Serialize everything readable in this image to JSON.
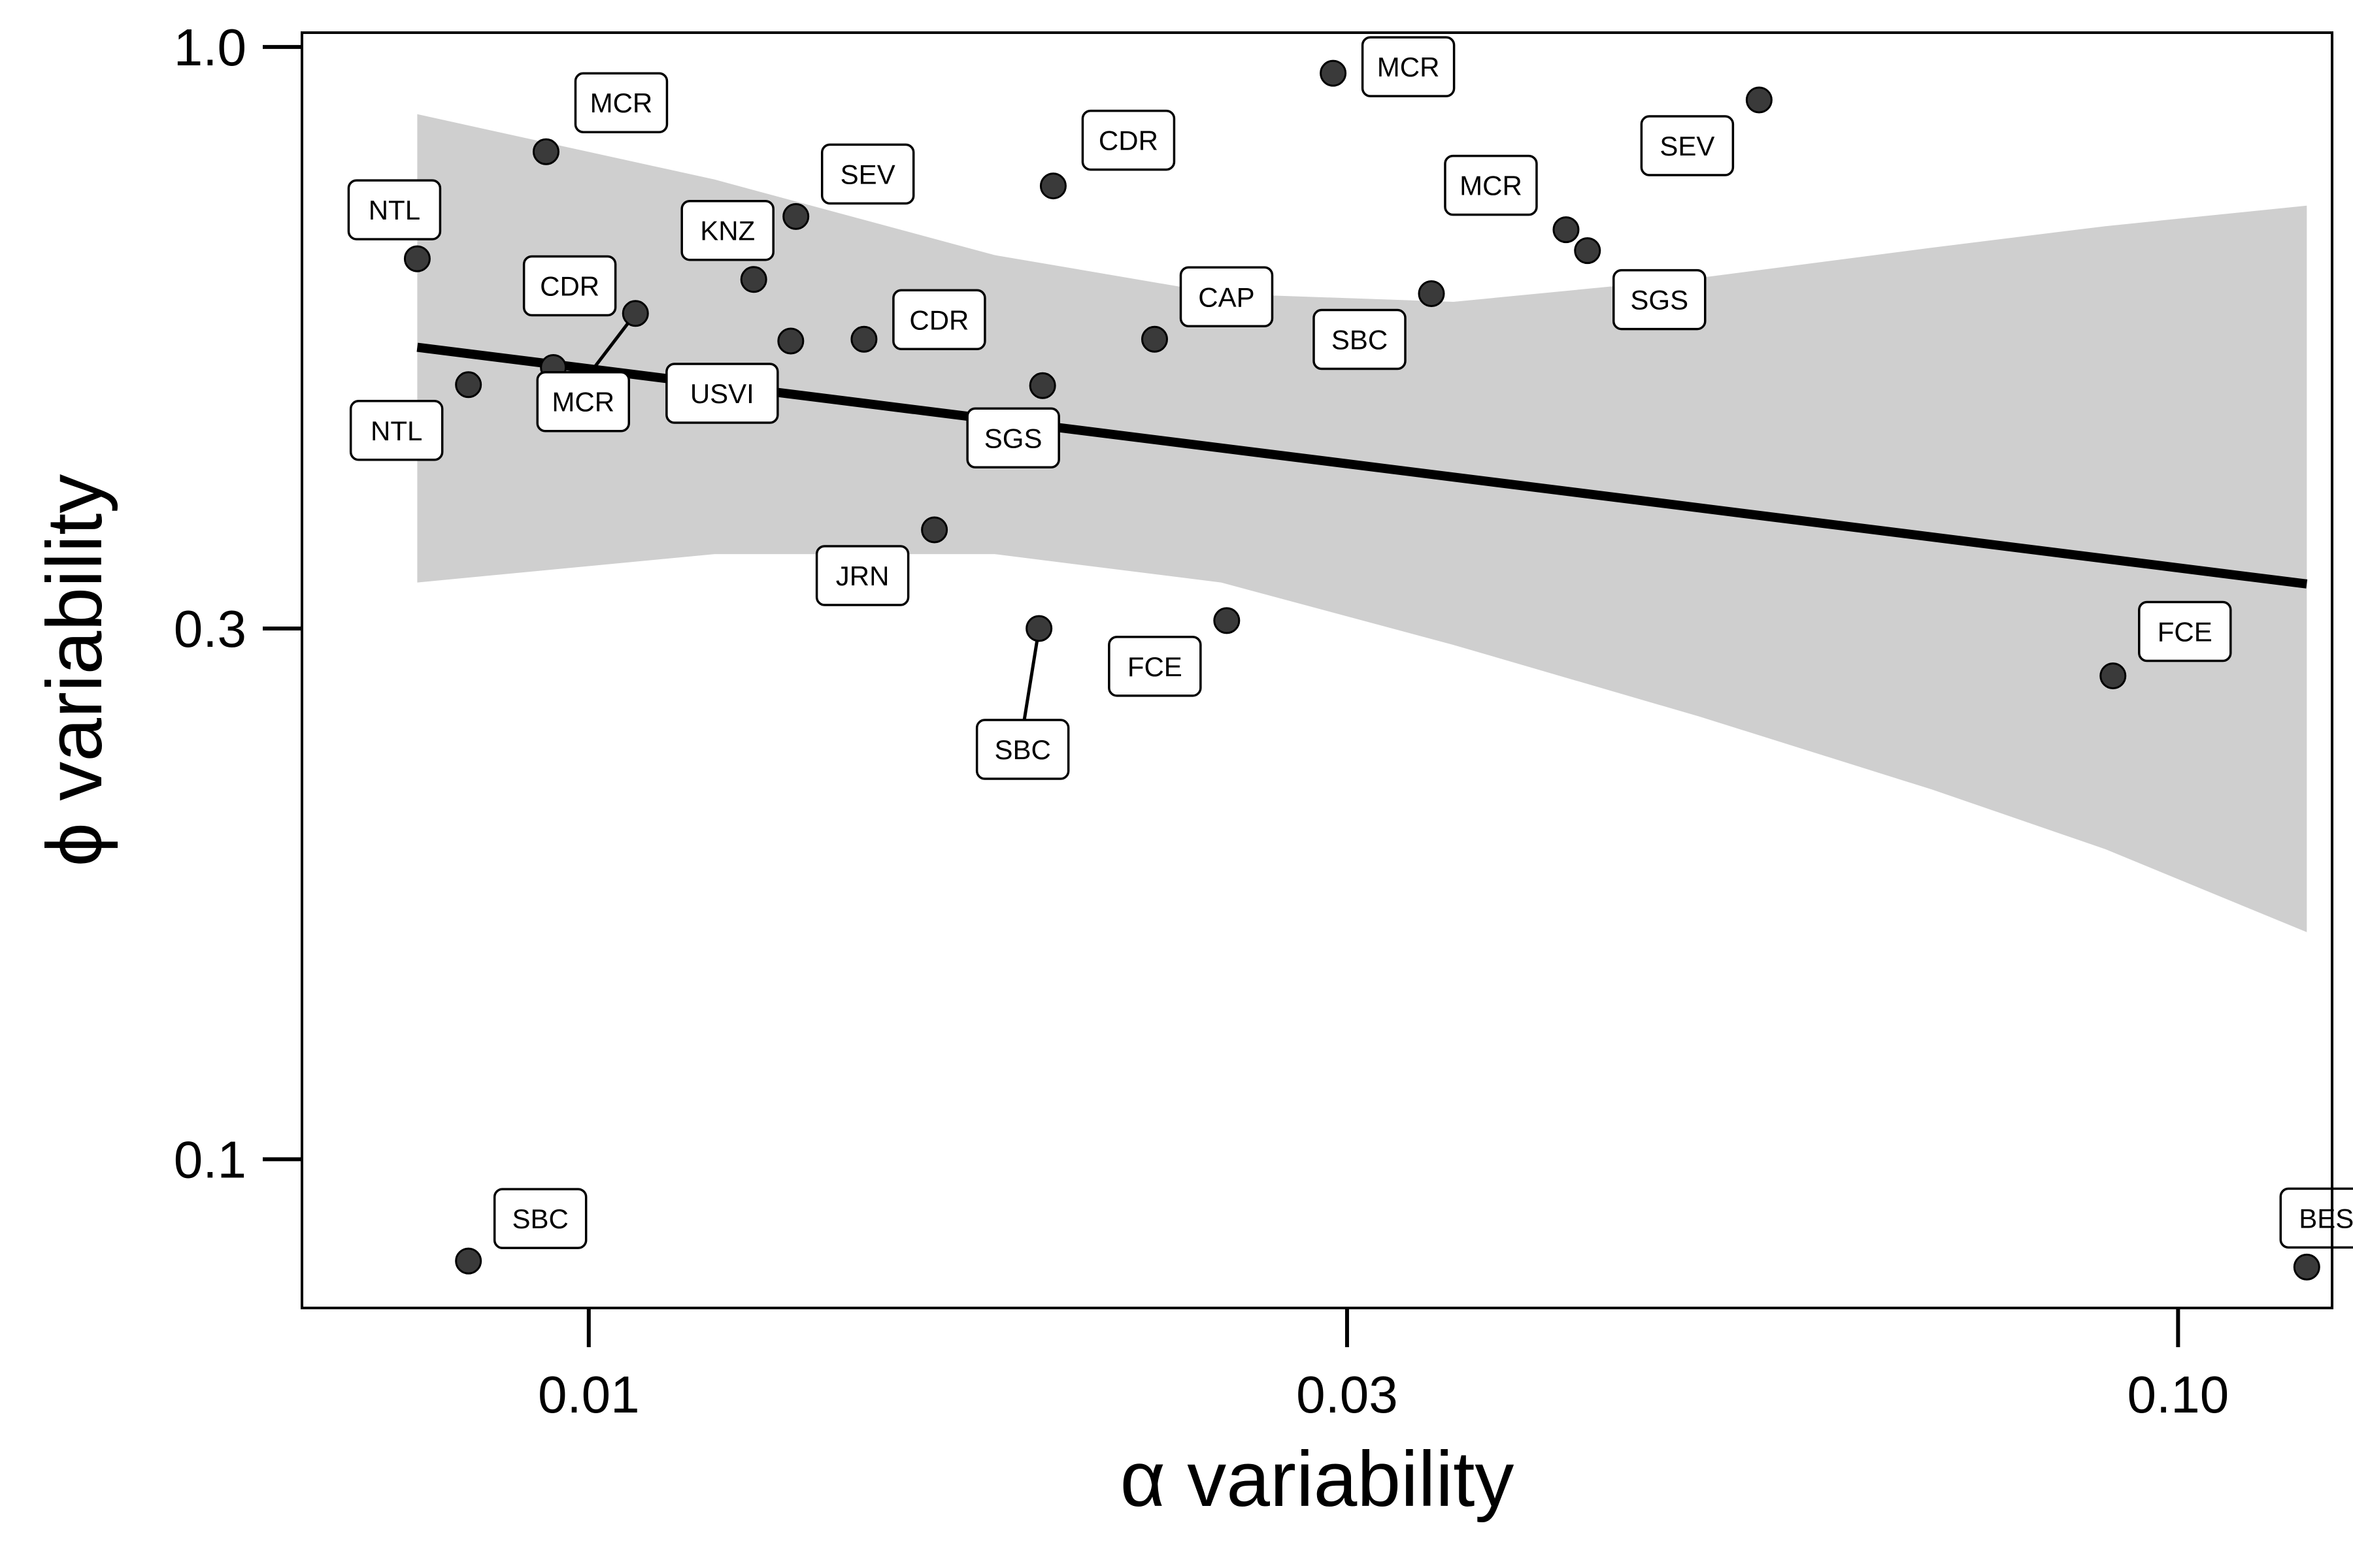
{
  "chart_data": {
    "type": "scatter",
    "xlabel": "α variability",
    "ylabel": "ϕ variability",
    "x_scale": "log",
    "y_scale": "log",
    "xlim": [
      0.0066,
      0.125
    ],
    "ylim": [
      0.0735,
      1.03
    ],
    "x_ticks": [
      {
        "value": 0.01,
        "label": "0.01"
      },
      {
        "value": 0.03,
        "label": "0.03"
      },
      {
        "value": 0.1,
        "label": "0.10"
      }
    ],
    "y_ticks": [
      {
        "value": 0.1,
        "label": "0.1"
      },
      {
        "value": 0.3,
        "label": "0.3"
      },
      {
        "value": 1.0,
        "label": "1.0"
      }
    ],
    "grid": false,
    "points": [
      {
        "label": "NTL",
        "x": 0.0078,
        "y": 0.645
      },
      {
        "label": "NTL",
        "x": 0.0084,
        "y": 0.497
      },
      {
        "label": "MCR",
        "x": 0.0094,
        "y": 0.805
      },
      {
        "label": "CDR",
        "x": 0.0095,
        "y": 0.515
      },
      {
        "label": "MCR",
        "x": 0.0107,
        "y": 0.576
      },
      {
        "label": "KNZ",
        "x": 0.0127,
        "y": 0.618
      },
      {
        "label": "USVI",
        "x": 0.0134,
        "y": 0.544
      },
      {
        "label": "SEV",
        "x": 0.0135,
        "y": 0.704
      },
      {
        "label": "CDR",
        "x": 0.0149,
        "y": 0.546
      },
      {
        "label": "JRN",
        "x": 0.0165,
        "y": 0.368
      },
      {
        "label": "SBC",
        "x": 0.0192,
        "y": 0.3
      },
      {
        "label": "SGS",
        "x": 0.0193,
        "y": 0.496
      },
      {
        "label": "CDR",
        "x": 0.0196,
        "y": 0.75
      },
      {
        "label": "CAP",
        "x": 0.0227,
        "y": 0.546
      },
      {
        "label": "FCE",
        "x": 0.0252,
        "y": 0.305
      },
      {
        "label": "MCR",
        "x": 0.0294,
        "y": 0.947
      },
      {
        "label": "SBC",
        "x": 0.0339,
        "y": 0.6
      },
      {
        "label": "MCR",
        "x": 0.0412,
        "y": 0.685
      },
      {
        "label": "SGS",
        "x": 0.0425,
        "y": 0.656
      },
      {
        "label": "SEV",
        "x": 0.0545,
        "y": 0.896
      },
      {
        "label": "FCE",
        "x": 0.091,
        "y": 0.272
      },
      {
        "label": "SBC",
        "x": 0.0084,
        "y": 0.081
      },
      {
        "label": "BES",
        "x": 0.1205,
        "y": 0.08
      }
    ],
    "trend_line": {
      "x": [
        0.0078,
        0.1205
      ],
      "y": [
        0.537,
        0.329
      ]
    },
    "confidence_band": {
      "x": [
        0.0078,
        0.012,
        0.018,
        0.025,
        0.035,
        0.05,
        0.07,
        0.09,
        0.1205
      ],
      "upper": [
        0.87,
        0.76,
        0.65,
        0.6,
        0.59,
        0.62,
        0.66,
        0.69,
        0.72
      ],
      "lower": [
        0.33,
        0.35,
        0.35,
        0.33,
        0.29,
        0.25,
        0.215,
        0.19,
        0.16
      ]
    }
  }
}
